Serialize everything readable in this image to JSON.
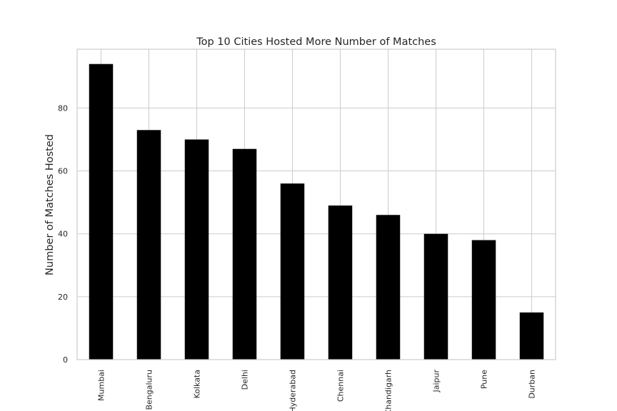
{
  "chart_data": {
    "type": "bar",
    "title": "Top 10 Cities Hosted More Number of Matches",
    "xlabel": "",
    "ylabel": "Number of Matches Hosted",
    "categories": [
      "Mumbai",
      "Bengaluru",
      "Kolkata",
      "Delhi",
      "Hyderabad",
      "Chennai",
      "Chandigarh",
      "Jaipur",
      "Pune",
      "Durban"
    ],
    "values": [
      94,
      73,
      70,
      67,
      56,
      49,
      46,
      40,
      38,
      15
    ],
    "ylim": [
      0,
      98.7
    ],
    "yticks": [
      0,
      20,
      40,
      60,
      80
    ],
    "grid": true,
    "bar_color": "#000000",
    "grid_color": "#cccccc"
  }
}
